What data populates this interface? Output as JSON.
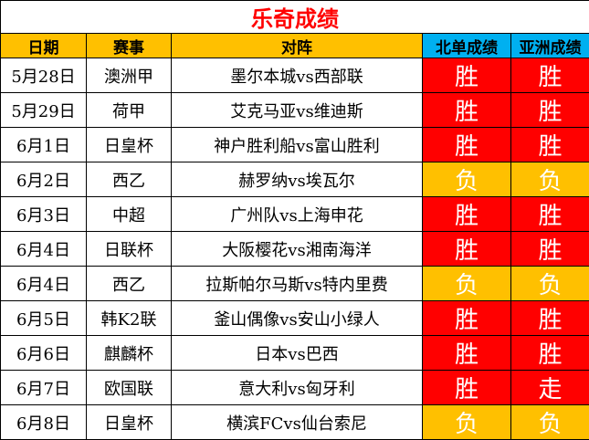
{
  "title": "乐奇成绩",
  "colors": {
    "title_text": "#ff0000",
    "header_bg": "#ffc000",
    "header_result_bg": "#00b0f0",
    "win_bg": "#ff0000",
    "loss_bg": "#ffc000",
    "result_text": "#ffffff"
  },
  "headers": {
    "date": "日期",
    "league": "赛事",
    "match": "对阵",
    "bd_result": "北单成绩",
    "asia_result": "亚洲成绩"
  },
  "rows": [
    {
      "date": "5月28日",
      "league": "澳洲甲",
      "match": "墨尔本城vs西部联",
      "bd": "胜",
      "asia": "胜"
    },
    {
      "date": "5月29日",
      "league": "荷甲",
      "match": "艾克马亚vs维迪斯",
      "bd": "胜",
      "asia": "胜"
    },
    {
      "date": "6月1日",
      "league": "日皇杯",
      "match": "神户胜利船vs富山胜利",
      "bd": "胜",
      "asia": "胜"
    },
    {
      "date": "6月2日",
      "league": "西乙",
      "match": "赫罗纳vs埃瓦尔",
      "bd": "负",
      "asia": "负"
    },
    {
      "date": "6月3日",
      "league": "中超",
      "match": "广州队vs上海申花",
      "bd": "胜",
      "asia": "胜"
    },
    {
      "date": "6月4日",
      "league": "日联杯",
      "match": "大阪樱花vs湘南海洋",
      "bd": "胜",
      "asia": "胜"
    },
    {
      "date": "6月4日",
      "league": "西乙",
      "match": "拉斯帕尔马斯vs特内里费",
      "bd": "负",
      "asia": "负"
    },
    {
      "date": "6月5日",
      "league": "韩K2联",
      "match": "釜山偶像vs安山小绿人",
      "bd": "胜",
      "asia": "胜"
    },
    {
      "date": "6月6日",
      "league": "麒麟杯",
      "match": "日本vs巴西",
      "bd": "胜",
      "asia": "胜"
    },
    {
      "date": "6月7日",
      "league": "欧国联",
      "match": "意大利vs匈牙利",
      "bd": "胜",
      "asia": "走"
    },
    {
      "date": "6月8日",
      "league": "日皇杯",
      "match": "横滨FCvs仙台索尼",
      "bd": "负",
      "asia": "负"
    }
  ]
}
